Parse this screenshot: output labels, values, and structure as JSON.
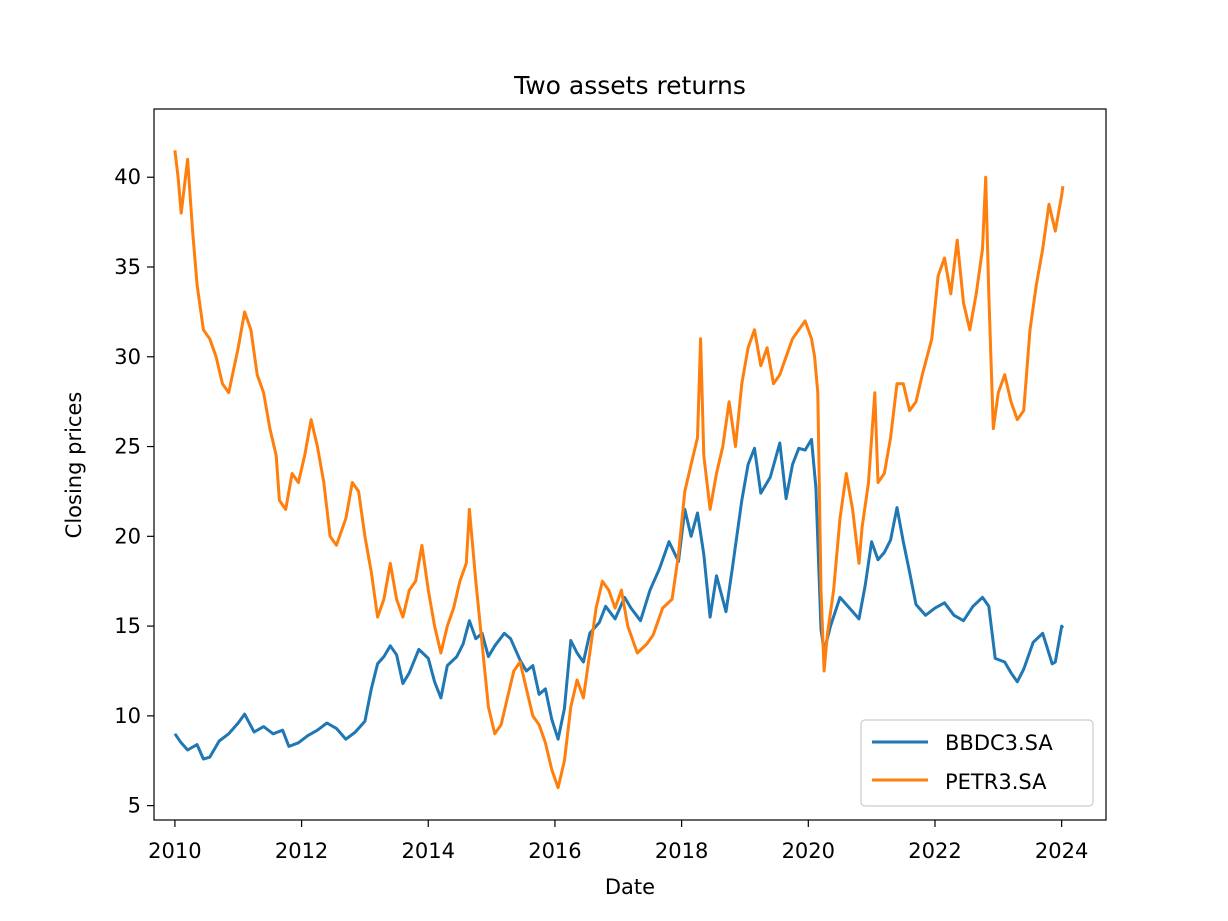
{
  "chart_data": {
    "type": "line",
    "title": "Two assets returns",
    "xlabel": "Date",
    "ylabel": "Closing prices",
    "xlim": [
      2009.67,
      2024.7
    ],
    "ylim": [
      4.2,
      43.8
    ],
    "xticks": [
      2010,
      2012,
      2014,
      2016,
      2018,
      2020,
      2022,
      2024
    ],
    "xtick_labels": [
      "2010",
      "2012",
      "2014",
      "2016",
      "2018",
      "2020",
      "2022",
      "2024"
    ],
    "yticks": [
      5,
      10,
      15,
      20,
      25,
      30,
      35,
      40
    ],
    "ytick_labels": [
      "5",
      "10",
      "15",
      "20",
      "25",
      "30",
      "35",
      "40"
    ],
    "grid": false,
    "legend_position": "lower right",
    "series": [
      {
        "name": "BBDC3.SA",
        "color": "#1f77b4",
        "points": [
          [
            2010.0,
            9.0
          ],
          [
            2010.1,
            8.5
          ],
          [
            2010.2,
            8.1
          ],
          [
            2010.35,
            8.4
          ],
          [
            2010.45,
            7.6
          ],
          [
            2010.55,
            7.7
          ],
          [
            2010.7,
            8.6
          ],
          [
            2010.85,
            9.0
          ],
          [
            2011.0,
            9.6
          ],
          [
            2011.1,
            10.1
          ],
          [
            2011.25,
            9.1
          ],
          [
            2011.4,
            9.4
          ],
          [
            2011.55,
            9.0
          ],
          [
            2011.7,
            9.2
          ],
          [
            2011.8,
            8.3
          ],
          [
            2011.95,
            8.5
          ],
          [
            2012.1,
            8.9
          ],
          [
            2012.25,
            9.2
          ],
          [
            2012.4,
            9.6
          ],
          [
            2012.55,
            9.3
          ],
          [
            2012.7,
            8.7
          ],
          [
            2012.85,
            9.1
          ],
          [
            2013.0,
            9.7
          ],
          [
            2013.1,
            11.5
          ],
          [
            2013.2,
            12.9
          ],
          [
            2013.3,
            13.3
          ],
          [
            2013.4,
            13.9
          ],
          [
            2013.5,
            13.4
          ],
          [
            2013.6,
            11.8
          ],
          [
            2013.7,
            12.4
          ],
          [
            2013.85,
            13.7
          ],
          [
            2014.0,
            13.2
          ],
          [
            2014.1,
            11.9
          ],
          [
            2014.2,
            11.0
          ],
          [
            2014.3,
            12.8
          ],
          [
            2014.45,
            13.3
          ],
          [
            2014.55,
            14.0
          ],
          [
            2014.65,
            15.3
          ],
          [
            2014.75,
            14.3
          ],
          [
            2014.85,
            14.6
          ],
          [
            2014.95,
            13.3
          ],
          [
            2015.05,
            13.9
          ],
          [
            2015.2,
            14.6
          ],
          [
            2015.3,
            14.3
          ],
          [
            2015.45,
            13.1
          ],
          [
            2015.55,
            12.5
          ],
          [
            2015.65,
            12.8
          ],
          [
            2015.75,
            11.2
          ],
          [
            2015.85,
            11.5
          ],
          [
            2015.95,
            9.8
          ],
          [
            2016.05,
            8.7
          ],
          [
            2016.15,
            10.4
          ],
          [
            2016.25,
            14.2
          ],
          [
            2016.35,
            13.5
          ],
          [
            2016.45,
            13.0
          ],
          [
            2016.55,
            14.6
          ],
          [
            2016.7,
            15.2
          ],
          [
            2016.8,
            16.1
          ],
          [
            2016.95,
            15.4
          ],
          [
            2017.1,
            16.6
          ],
          [
            2017.2,
            16.0
          ],
          [
            2017.35,
            15.3
          ],
          [
            2017.5,
            17.0
          ],
          [
            2017.65,
            18.2
          ],
          [
            2017.8,
            19.7
          ],
          [
            2017.95,
            18.6
          ],
          [
            2018.05,
            21.5
          ],
          [
            2018.15,
            20.0
          ],
          [
            2018.25,
            21.3
          ],
          [
            2018.35,
            19.0
          ],
          [
            2018.45,
            15.5
          ],
          [
            2018.55,
            17.8
          ],
          [
            2018.7,
            15.8
          ],
          [
            2018.8,
            18.2
          ],
          [
            2018.95,
            22.0
          ],
          [
            2019.05,
            24.0
          ],
          [
            2019.15,
            24.9
          ],
          [
            2019.25,
            22.4
          ],
          [
            2019.4,
            23.3
          ],
          [
            2019.55,
            25.2
          ],
          [
            2019.65,
            22.1
          ],
          [
            2019.75,
            24.0
          ],
          [
            2019.85,
            24.9
          ],
          [
            2019.95,
            24.8
          ],
          [
            2020.05,
            25.4
          ],
          [
            2020.12,
            22.7
          ],
          [
            2020.2,
            14.8
          ],
          [
            2020.25,
            13.6
          ],
          [
            2020.35,
            15.0
          ],
          [
            2020.5,
            16.6
          ],
          [
            2020.65,
            16.0
          ],
          [
            2020.8,
            15.4
          ],
          [
            2020.9,
            17.3
          ],
          [
            2021.0,
            19.7
          ],
          [
            2021.1,
            18.7
          ],
          [
            2021.2,
            19.1
          ],
          [
            2021.3,
            19.8
          ],
          [
            2021.4,
            21.6
          ],
          [
            2021.5,
            19.7
          ],
          [
            2021.6,
            18.0
          ],
          [
            2021.7,
            16.2
          ],
          [
            2021.85,
            15.6
          ],
          [
            2022.0,
            16.0
          ],
          [
            2022.15,
            16.3
          ],
          [
            2022.3,
            15.6
          ],
          [
            2022.45,
            15.3
          ],
          [
            2022.6,
            16.1
          ],
          [
            2022.75,
            16.6
          ],
          [
            2022.85,
            16.1
          ],
          [
            2022.95,
            13.2
          ],
          [
            2023.1,
            13.0
          ],
          [
            2023.2,
            12.4
          ],
          [
            2023.3,
            11.9
          ],
          [
            2023.4,
            12.6
          ],
          [
            2023.55,
            14.1
          ],
          [
            2023.7,
            14.6
          ],
          [
            2023.85,
            12.9
          ],
          [
            2023.9,
            13.0
          ],
          [
            2024.0,
            15.0
          ],
          [
            2024.02,
            14.9
          ]
        ]
      },
      {
        "name": "PETR3.SA",
        "color": "#ff7f0e",
        "points": [
          [
            2010.0,
            41.5
          ],
          [
            2010.05,
            40.0
          ],
          [
            2010.1,
            38.0
          ],
          [
            2010.15,
            39.5
          ],
          [
            2010.2,
            41.0
          ],
          [
            2010.28,
            37.0
          ],
          [
            2010.35,
            34.0
          ],
          [
            2010.45,
            31.5
          ],
          [
            2010.55,
            31.0
          ],
          [
            2010.65,
            30.0
          ],
          [
            2010.75,
            28.5
          ],
          [
            2010.85,
            28.0
          ],
          [
            2011.0,
            30.5
          ],
          [
            2011.1,
            32.5
          ],
          [
            2011.2,
            31.5
          ],
          [
            2011.3,
            29.0
          ],
          [
            2011.4,
            28.0
          ],
          [
            2011.5,
            26.0
          ],
          [
            2011.6,
            24.5
          ],
          [
            2011.65,
            22.0
          ],
          [
            2011.75,
            21.5
          ],
          [
            2011.85,
            23.5
          ],
          [
            2011.95,
            23.0
          ],
          [
            2012.05,
            24.5
          ],
          [
            2012.15,
            26.5
          ],
          [
            2012.25,
            25.0
          ],
          [
            2012.35,
            23.0
          ],
          [
            2012.45,
            20.0
          ],
          [
            2012.55,
            19.5
          ],
          [
            2012.7,
            21.0
          ],
          [
            2012.8,
            23.0
          ],
          [
            2012.9,
            22.5
          ],
          [
            2013.0,
            20.0
          ],
          [
            2013.1,
            18.0
          ],
          [
            2013.2,
            15.5
          ],
          [
            2013.3,
            16.5
          ],
          [
            2013.4,
            18.5
          ],
          [
            2013.5,
            16.5
          ],
          [
            2013.6,
            15.5
          ],
          [
            2013.7,
            17.0
          ],
          [
            2013.8,
            17.5
          ],
          [
            2013.9,
            19.5
          ],
          [
            2014.0,
            17.0
          ],
          [
            2014.1,
            15.0
          ],
          [
            2014.2,
            13.5
          ],
          [
            2014.3,
            15.0
          ],
          [
            2014.4,
            16.0
          ],
          [
            2014.5,
            17.5
          ],
          [
            2014.6,
            18.5
          ],
          [
            2014.65,
            21.5
          ],
          [
            2014.75,
            17.5
          ],
          [
            2014.85,
            14.0
          ],
          [
            2014.95,
            10.5
          ],
          [
            2015.05,
            9.0
          ],
          [
            2015.15,
            9.5
          ],
          [
            2015.25,
            11.0
          ],
          [
            2015.35,
            12.5
          ],
          [
            2015.45,
            13.0
          ],
          [
            2015.55,
            11.5
          ],
          [
            2015.65,
            10.0
          ],
          [
            2015.75,
            9.5
          ],
          [
            2015.85,
            8.5
          ],
          [
            2015.95,
            7.0
          ],
          [
            2016.05,
            6.0
          ],
          [
            2016.15,
            7.5
          ],
          [
            2016.25,
            10.5
          ],
          [
            2016.35,
            12.0
          ],
          [
            2016.45,
            11.0
          ],
          [
            2016.55,
            13.5
          ],
          [
            2016.65,
            16.0
          ],
          [
            2016.75,
            17.5
          ],
          [
            2016.85,
            17.0
          ],
          [
            2016.95,
            16.0
          ],
          [
            2017.05,
            17.0
          ],
          [
            2017.15,
            15.0
          ],
          [
            2017.3,
            13.5
          ],
          [
            2017.45,
            14.0
          ],
          [
            2017.55,
            14.5
          ],
          [
            2017.7,
            16.0
          ],
          [
            2017.85,
            16.5
          ],
          [
            2017.95,
            19.0
          ],
          [
            2018.05,
            22.5
          ],
          [
            2018.15,
            24.0
          ],
          [
            2018.25,
            25.5
          ],
          [
            2018.3,
            31.0
          ],
          [
            2018.35,
            24.5
          ],
          [
            2018.45,
            21.5
          ],
          [
            2018.55,
            23.5
          ],
          [
            2018.65,
            25.0
          ],
          [
            2018.75,
            27.5
          ],
          [
            2018.85,
            25.0
          ],
          [
            2018.95,
            28.5
          ],
          [
            2019.05,
            30.5
          ],
          [
            2019.15,
            31.5
          ],
          [
            2019.25,
            29.5
          ],
          [
            2019.35,
            30.5
          ],
          [
            2019.45,
            28.5
          ],
          [
            2019.55,
            29.0
          ],
          [
            2019.65,
            30.0
          ],
          [
            2019.75,
            31.0
          ],
          [
            2019.85,
            31.5
          ],
          [
            2019.95,
            32.0
          ],
          [
            2020.05,
            31.0
          ],
          [
            2020.1,
            30.0
          ],
          [
            2020.15,
            28.0
          ],
          [
            2020.2,
            17.0
          ],
          [
            2020.25,
            12.5
          ],
          [
            2020.3,
            14.5
          ],
          [
            2020.4,
            17.0
          ],
          [
            2020.5,
            21.0
          ],
          [
            2020.6,
            23.5
          ],
          [
            2020.7,
            21.5
          ],
          [
            2020.8,
            18.5
          ],
          [
            2020.85,
            20.5
          ],
          [
            2020.95,
            23.0
          ],
          [
            2021.05,
            28.0
          ],
          [
            2021.1,
            23.0
          ],
          [
            2021.2,
            23.5
          ],
          [
            2021.3,
            25.5
          ],
          [
            2021.4,
            28.5
          ],
          [
            2021.5,
            28.5
          ],
          [
            2021.6,
            27.0
          ],
          [
            2021.7,
            27.5
          ],
          [
            2021.8,
            29.0
          ],
          [
            2021.95,
            31.0
          ],
          [
            2022.05,
            34.5
          ],
          [
            2022.15,
            35.5
          ],
          [
            2022.25,
            33.5
          ],
          [
            2022.35,
            36.5
          ],
          [
            2022.45,
            33.0
          ],
          [
            2022.55,
            31.5
          ],
          [
            2022.65,
            33.5
          ],
          [
            2022.75,
            36.0
          ],
          [
            2022.8,
            40.0
          ],
          [
            2022.85,
            33.5
          ],
          [
            2022.92,
            26.0
          ],
          [
            2023.0,
            28.0
          ],
          [
            2023.1,
            29.0
          ],
          [
            2023.2,
            27.5
          ],
          [
            2023.3,
            26.5
          ],
          [
            2023.4,
            27.0
          ],
          [
            2023.5,
            31.5
          ],
          [
            2023.6,
            34.0
          ],
          [
            2023.7,
            36.0
          ],
          [
            2023.8,
            38.5
          ],
          [
            2023.9,
            37.0
          ],
          [
            2024.0,
            39.0
          ],
          [
            2024.02,
            39.5
          ]
        ]
      }
    ]
  }
}
